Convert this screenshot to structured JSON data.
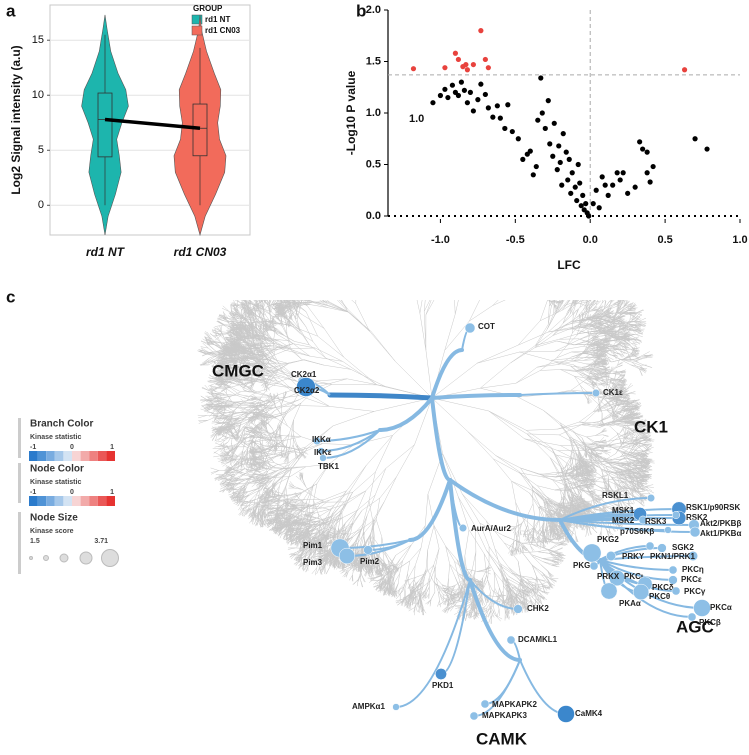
{
  "panels": [
    "a",
    "b",
    "c"
  ],
  "chart_data": [
    {
      "type": "violin",
      "y_label": "Log2 Signal intensity (a.u)",
      "legend_title": "GROUP",
      "categories": [
        "rd1 NT",
        "rd1 CN03"
      ],
      "ylim": [
        -2.7,
        18.2
      ],
      "yticks": [
        0,
        5,
        10,
        15
      ],
      "grid": true,
      "density_y": [
        -2.7,
        -1,
        1,
        3,
        4.5,
        6,
        7.5,
        9,
        10.5,
        12,
        14,
        16,
        17.3
      ],
      "series": [
        {
          "name": "rd1 NT",
          "color": "#1db5ad",
          "median": 7.8,
          "q1": 4.4,
          "q3": 10.2,
          "whisker_low": 0,
          "whisker_high": 15.5,
          "density": [
            0,
            0.12,
            0.4,
            0.62,
            0.55,
            0.45,
            0.65,
            0.9,
            0.8,
            0.5,
            0.22,
            0.08,
            0
          ]
        },
        {
          "name": "rd1 CN03",
          "color": "#f26b5b",
          "median": 7.0,
          "q1": 4.5,
          "q3": 9.2,
          "whisker_low": 0,
          "whisker_high": 14.3,
          "density": [
            0,
            0.2,
            0.6,
            0.95,
            1.0,
            0.75,
            0.68,
            0.78,
            0.8,
            0.55,
            0.25,
            0.05,
            0
          ]
        }
      ]
    },
    {
      "type": "scatter",
      "x_label": "LFC",
      "y_label": "-Log10 P value",
      "annotation": "1.0",
      "xlim": [
        -1.35,
        1.0
      ],
      "ylim": [
        0,
        2.0
      ],
      "xticks": [
        {
          "value": -1,
          "label": "-1.0"
        },
        -0.5,
        {
          "value": 0,
          "label": "0.0"
        },
        0.5,
        {
          "value": 1,
          "label": "1.0"
        }
      ],
      "yticks": [
        {
          "value": 0,
          "label": "0.0"
        },
        0.5,
        {
          "value": 1,
          "label": "1.0"
        },
        1.5,
        {
          "value": 2,
          "label": "2.0"
        }
      ],
      "hline": 1.37,
      "vline": 0,
      "series": [
        {
          "color": "#000000",
          "x": [
            -1.05,
            -1.0,
            -0.97,
            -0.95,
            -0.92,
            -0.9,
            -0.88,
            -0.86,
            -0.84,
            -0.82,
            -0.8,
            -0.78,
            -0.75,
            -0.73,
            -0.7,
            -0.68,
            -0.65,
            -0.62,
            -0.6,
            -0.57,
            -0.55,
            -0.52,
            -0.48,
            -0.45,
            -0.42,
            -0.4,
            -0.38,
            -0.36,
            -0.35,
            -0.33,
            -0.32,
            -0.3,
            -0.28,
            -0.27,
            -0.25,
            -0.24,
            -0.22,
            -0.21,
            -0.2,
            -0.19,
            -0.18,
            -0.16,
            -0.15,
            -0.14,
            -0.13,
            -0.12,
            -0.1,
            -0.09,
            -0.08,
            -0.07,
            -0.06,
            -0.05,
            -0.04,
            -0.03,
            -0.02,
            -0.01,
            0.02,
            0.04,
            0.06,
            0.08,
            0.1,
            0.12,
            0.15,
            0.18,
            0.2,
            0.22,
            0.25,
            0.3,
            0.33,
            0.35,
            0.38,
            0.4,
            0.42,
            0.7,
            0.78,
            0.38
          ],
          "values": [
            1.1,
            1.17,
            1.23,
            1.15,
            1.27,
            1.2,
            1.17,
            1.3,
            1.22,
            1.1,
            1.2,
            1.02,
            1.13,
            1.28,
            1.18,
            1.05,
            0.96,
            1.07,
            0.95,
            0.85,
            1.08,
            0.82,
            0.75,
            0.55,
            0.6,
            0.63,
            0.4,
            0.48,
            0.93,
            1.34,
            1.0,
            0.85,
            1.12,
            0.7,
            0.58,
            0.9,
            0.45,
            0.68,
            0.52,
            0.3,
            0.8,
            0.62,
            0.35,
            0.55,
            0.22,
            0.42,
            0.28,
            0.15,
            0.5,
            0.32,
            0.1,
            0.2,
            0.06,
            0.12,
            0.03,
            0.0,
            0.12,
            0.25,
            0.08,
            0.38,
            0.3,
            0.2,
            0.3,
            0.42,
            0.35,
            0.42,
            0.22,
            0.28,
            0.72,
            0.65,
            0.42,
            0.33,
            0.48,
            0.75,
            0.65,
            0.62
          ]
        },
        {
          "color": "#e8423d",
          "x": [
            -1.18,
            -0.97,
            -0.9,
            -0.88,
            -0.85,
            -0.82,
            -0.83,
            -0.78,
            -0.73,
            -0.7,
            -0.68,
            0.63
          ],
          "values": [
            1.43,
            1.44,
            1.58,
            1.52,
            1.45,
            1.42,
            1.47,
            1.47,
            1.8,
            1.52,
            1.44,
            1.42
          ]
        }
      ]
    }
  ],
  "kinome": {
    "groups": [
      "CMGC",
      "CK1",
      "AGC",
      "CAMK"
    ],
    "nodes": [
      {
        "label": "COT",
        "score": 2.3,
        "color": "#8dbfe6"
      },
      {
        "label": "CK2α1",
        "score": 2.0,
        "color": "#8dbfe6"
      },
      {
        "label": "CK2α2",
        "score": 3.71,
        "color": "#3b87cc"
      },
      {
        "label": "CK1ε",
        "score": 1.9,
        "color": "#8dbfe6"
      },
      {
        "label": "IKKα",
        "score": 1.9,
        "color": "#8dbfe6"
      },
      {
        "label": "IKKε",
        "score": 1.8,
        "color": "#8dbfe6"
      },
      {
        "label": "TBK1",
        "score": 1.8,
        "color": "#8dbfe6"
      },
      {
        "label": "RSKL1",
        "score": 1.9,
        "color": "#8dbfe6"
      },
      {
        "label": "RSK1/p90RSK",
        "score": 3.0,
        "color": "#4a90d0"
      },
      {
        "label": "RSK2",
        "score": 2.9,
        "color": "#4a90d0"
      },
      {
        "label": "MSK1",
        "score": 2.8,
        "color": "#4a90d0"
      },
      {
        "label": "MSK2",
        "score": 2.0,
        "color": "#8dbfe6"
      },
      {
        "label": "RSK3",
        "score": 1.9,
        "color": "#8dbfe6"
      },
      {
        "label": "Akt2/PKBβ",
        "score": 2.4,
        "color": "#8dbfe6"
      },
      {
        "label": "Akt1/PKBα",
        "score": 2.3,
        "color": "#8dbfe6"
      },
      {
        "label": "p70S6Kβ",
        "score": 1.8,
        "color": "#8dbfe6"
      },
      {
        "label": "AurA/Aur2",
        "score": 1.9,
        "color": "#8dbfe6"
      },
      {
        "label": "PKG2",
        "score": 2.0,
        "color": "#8dbfe6"
      },
      {
        "label": "SGK2",
        "score": 2.1,
        "color": "#8dbfe6"
      },
      {
        "label": "PKG1",
        "score": 3.6,
        "color": "#8dbfe6"
      },
      {
        "label": "PRKY",
        "score": 2.2,
        "color": "#8dbfe6"
      },
      {
        "label": "PKN1/PRK1",
        "score": 2.2,
        "color": "#8dbfe6"
      },
      {
        "label": "Pim1",
        "score": 3.6,
        "color": "#8dbfe6"
      },
      {
        "label": "Pim3",
        "score": 3.2,
        "color": "#8dbfe6"
      },
      {
        "label": "Pim2",
        "score": 2.1,
        "color": "#8dbfe6"
      },
      {
        "label": "PKCη",
        "score": 2.0,
        "color": "#8dbfe6"
      },
      {
        "label": "PKCε",
        "score": 2.1,
        "color": "#8dbfe6"
      },
      {
        "label": "PKCι",
        "score": 3.2,
        "color": "#8dbfe6"
      },
      {
        "label": "PRKX",
        "score": 2.0,
        "color": "#8dbfe6"
      },
      {
        "label": "PKCδ",
        "score": 3.0,
        "color": "#8dbfe6"
      },
      {
        "label": "PKCγ",
        "score": 2.0,
        "color": "#8dbfe6"
      },
      {
        "label": "PKCθ",
        "score": 3.2,
        "color": "#8dbfe6"
      },
      {
        "label": "PKAα",
        "score": 3.3,
        "color": "#8dbfe6"
      },
      {
        "label": "PKCα",
        "score": 3.4,
        "color": "#8dbfe6"
      },
      {
        "label": "PKCβ",
        "score": 2.0,
        "color": "#8dbfe6"
      },
      {
        "label": "CHK2",
        "score": 2.1,
        "color": "#8dbfe6"
      },
      {
        "label": "DCAMKL1",
        "score": 2.0,
        "color": "#8dbfe6"
      },
      {
        "label": "PKD1",
        "score": 2.5,
        "color": "#4a90d0"
      },
      {
        "label": "AMPKα1",
        "score": 1.8,
        "color": "#8dbfe6"
      },
      {
        "label": "MAPKAPK2",
        "score": 2.0,
        "color": "#8dbfe6"
      },
      {
        "label": "MAPKAPK3",
        "score": 2.0,
        "color": "#8dbfe6"
      },
      {
        "label": "CaMK4",
        "score": 3.4,
        "color": "#3b87cc"
      }
    ],
    "legends": [
      {
        "title": "Branch Color",
        "subtitle": "Kinase statistic",
        "ticks": [
          -1,
          0,
          1
        ],
        "colors": [
          "#2b7bcc",
          "#4f93d6",
          "#79ace0",
          "#a6c8ea",
          "#d3e3f3",
          "#f7d4d4",
          "#f2aaa9",
          "#ee8180",
          "#ea5857",
          "#e63331"
        ]
      },
      {
        "title": "Node Color",
        "subtitle": "Kinase statistic",
        "ticks": [
          -1,
          0,
          1
        ],
        "colors": [
          "#2b7bcc",
          "#4f93d6",
          "#79ace0",
          "#a6c8ea",
          "#d3e3f3",
          "#f7d4d4",
          "#f2aaa9",
          "#ee8180",
          "#ea5857",
          "#e63331"
        ]
      },
      {
        "title": "Node Size",
        "subtitle": "Kinase score",
        "ticks": [
          1.5,
          3.71
        ]
      }
    ]
  }
}
